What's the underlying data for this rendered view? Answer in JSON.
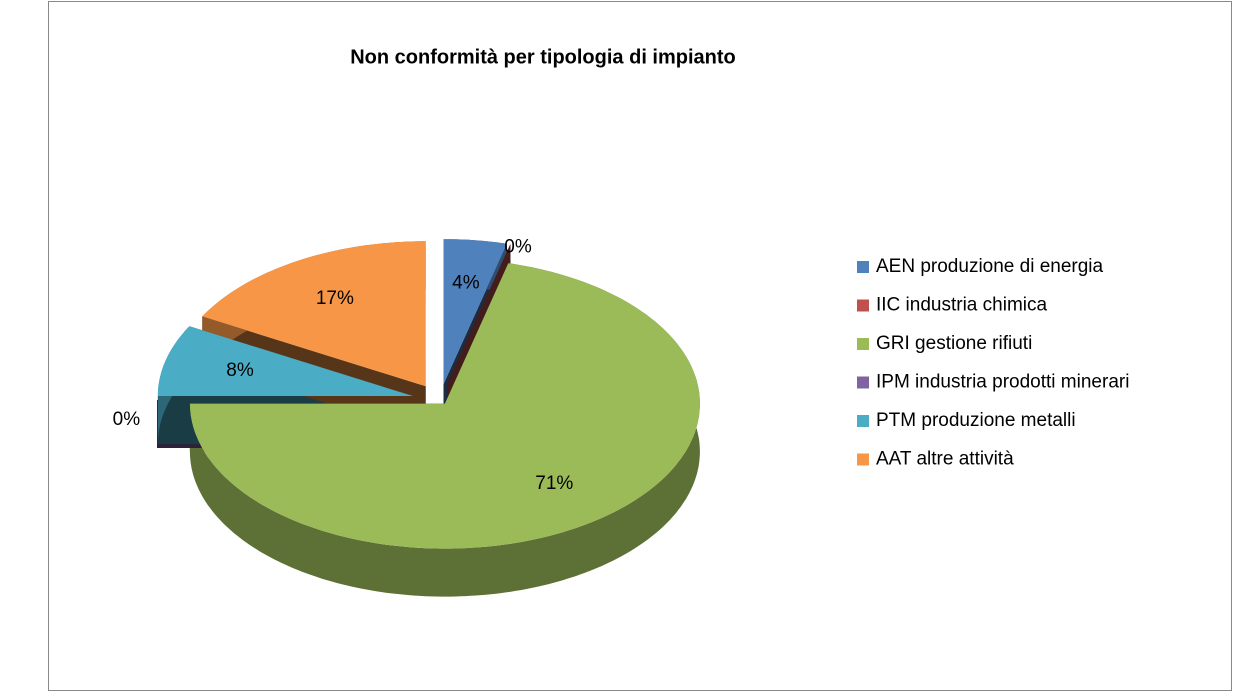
{
  "chart_data": {
    "type": "pie",
    "title": "Non conformità per tipologia di impianto",
    "categories": [
      "AEN produzione di energia",
      "IIC  industria chimica",
      "GRI gestione rifiuti",
      "IPM industria prodotti minerari",
      "PTM produzione metalli",
      "AAT altre attività"
    ],
    "values": [
      4,
      0,
      71,
      0,
      8,
      17
    ],
    "value_labels": [
      "4%",
      "0%",
      "71%",
      "0%",
      "8%",
      "17%"
    ],
    "colors": [
      "#4f81bd",
      "#c0504d",
      "#9bbb59",
      "#8064a2",
      "#4bacc6",
      "#f79646"
    ],
    "legend": "right"
  }
}
